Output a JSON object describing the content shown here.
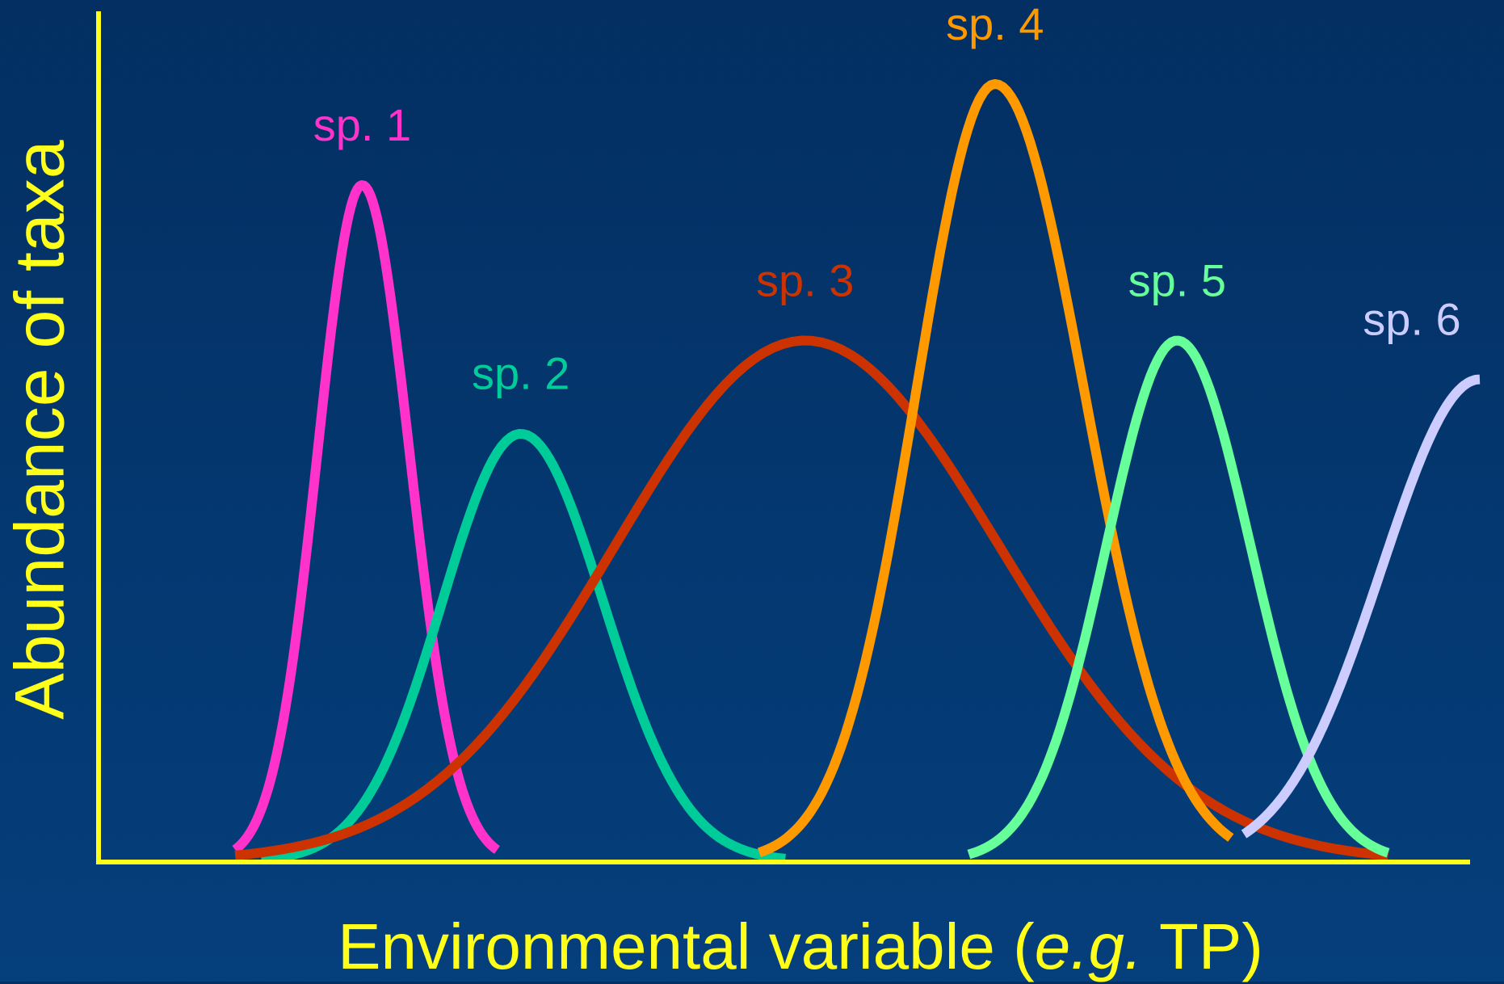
{
  "chart_data": {
    "type": "line",
    "title": "",
    "xlabel_parts": [
      "Environmental variable (",
      "e.g.",
      " TP)"
    ],
    "ylabel": "Abundance of taxa",
    "grid": false,
    "legend": "none",
    "axis_color": "#ffff1a",
    "background_color": "#043a74",
    "series": [
      {
        "name": "sp. 1",
        "color": "#ff33cc",
        "peak_x": 0.147,
        "peak_y": 0.87,
        "left_sd": 0.034,
        "right_sd": 0.036,
        "x_start": 0.05,
        "x_end": 0.25
      },
      {
        "name": "sp. 2",
        "color": "#00cc99",
        "peak_x": 0.268,
        "peak_y": 0.55,
        "left_sd": 0.06,
        "right_sd": 0.063,
        "x_start": 0.07,
        "x_end": 0.47
      },
      {
        "name": "sp. 3",
        "color": "#cc3300",
        "peak_x": 0.485,
        "peak_y": 0.67,
        "left_sd": 0.145,
        "right_sd": 0.148,
        "x_start": 0.05,
        "x_end": 0.93
      },
      {
        "name": "sp. 4",
        "color": "#ff9900",
        "peak_x": 0.63,
        "peak_y": 1.0,
        "left_sd": 0.06,
        "right_sd": 0.068,
        "x_start": 0.45,
        "x_end": 0.81
      },
      {
        "name": "sp. 5",
        "color": "#66ff99",
        "peak_x": 0.769,
        "peak_y": 0.67,
        "left_sd": 0.054,
        "right_sd": 0.056,
        "x_start": 0.61,
        "x_end": 0.93
      },
      {
        "name": "sp. 6",
        "color": "#ccccff",
        "peak_x": 1.0,
        "peak_y": 0.62,
        "left_sd": 0.075,
        "right_sd": 0.075,
        "x_start": 0.82,
        "x_end": 1.0
      }
    ],
    "xlim": [
      0,
      1
    ],
    "ylim": [
      0,
      1
    ]
  }
}
